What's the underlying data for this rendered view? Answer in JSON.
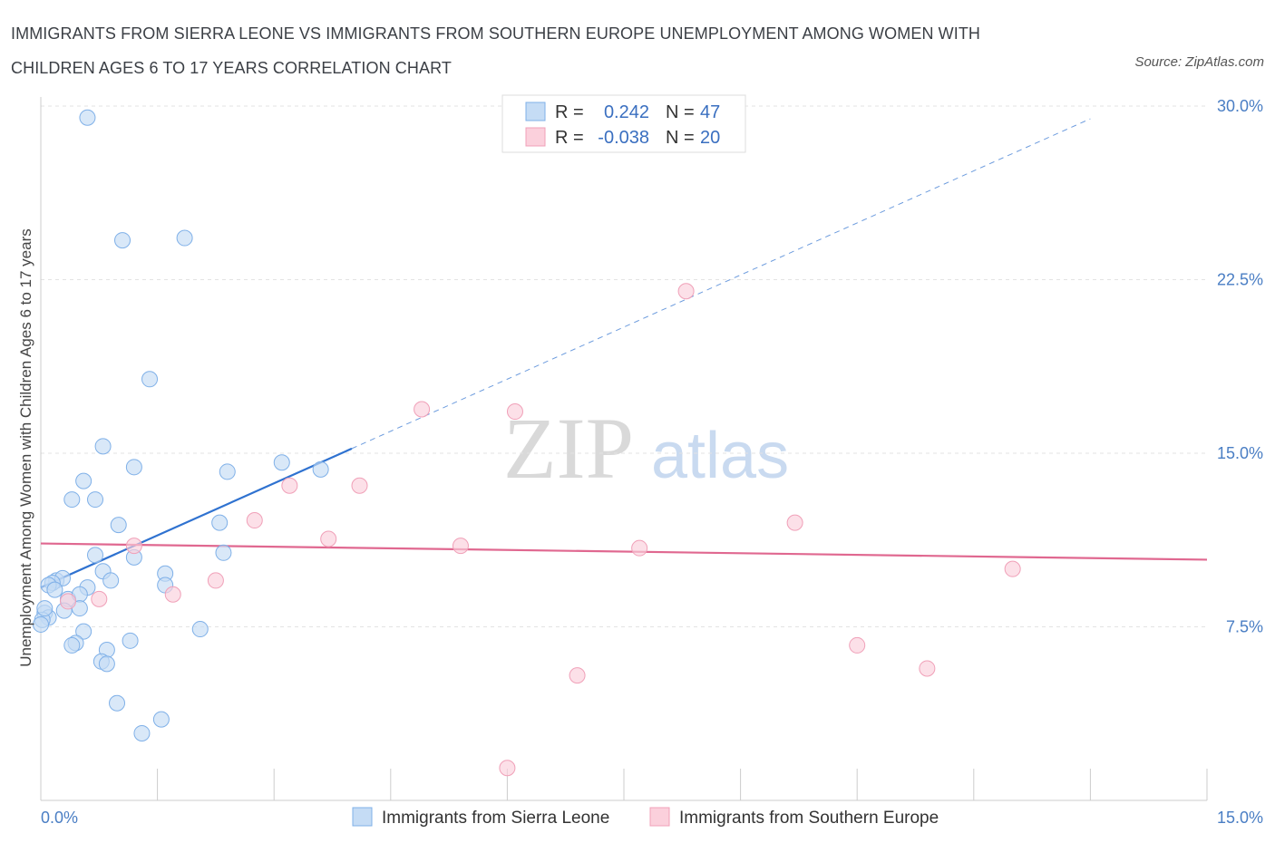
{
  "title": "IMMIGRANTS FROM SIERRA LEONE VS IMMIGRANTS FROM SOUTHERN EUROPE UNEMPLOYMENT AMONG WOMEN WITH CHILDREN AGES 6 TO 17 YEARS CORRELATION CHART",
  "source": "Source: ZipAtlas.com",
  "watermark": {
    "zip": "ZIP",
    "atlas": "atlas"
  },
  "chart_data": {
    "type": "scatter",
    "xlabel": "",
    "ylabel": "Unemployment Among Women with Children Ages 6 to 17 years",
    "xlim": [
      0,
      15
    ],
    "ylim": [
      0,
      30
    ],
    "x_tick_labels": [
      "0.0%",
      "15.0%"
    ],
    "y_ticks": [
      7.5,
      15.0,
      22.5,
      30.0
    ],
    "y_tick_labels": [
      "7.5%",
      "15.0%",
      "22.5%",
      "30.0%"
    ],
    "grid": true,
    "legend": {
      "r_label": "R =",
      "n_label": "N =",
      "entries": [
        {
          "name": "Immigrants from Sierra Leone",
          "r": "0.242",
          "n": "47"
        },
        {
          "name": "Immigrants from Southern Europe",
          "r": "-0.038",
          "n": "20"
        }
      ]
    },
    "series": [
      {
        "name": "Immigrants from Sierra Leone",
        "color": "#7fb0e8",
        "fill": "#c5dcf5",
        "line_color": "#2f72d0",
        "trend": {
          "x0": 0.0,
          "y0": 9.2,
          "x1": 4.0,
          "y1": 15.2,
          "dash_to_x": 13.5
        },
        "points": [
          [
            0.6,
            29.5
          ],
          [
            1.05,
            24.2
          ],
          [
            1.85,
            24.3
          ],
          [
            1.4,
            18.2
          ],
          [
            0.8,
            15.3
          ],
          [
            1.2,
            14.4
          ],
          [
            0.55,
            13.8
          ],
          [
            0.4,
            13.0
          ],
          [
            0.7,
            13.0
          ],
          [
            3.1,
            14.6
          ],
          [
            3.6,
            14.3
          ],
          [
            2.4,
            14.2
          ],
          [
            1.0,
            11.9
          ],
          [
            2.3,
            12.0
          ],
          [
            0.7,
            10.6
          ],
          [
            1.2,
            10.5
          ],
          [
            2.35,
            10.7
          ],
          [
            0.8,
            9.9
          ],
          [
            1.6,
            9.8
          ],
          [
            0.2,
            9.5
          ],
          [
            0.28,
            9.6
          ],
          [
            0.15,
            9.4
          ],
          [
            0.1,
            9.3
          ],
          [
            0.18,
            9.1
          ],
          [
            0.9,
            9.5
          ],
          [
            1.6,
            9.3
          ],
          [
            0.6,
            9.2
          ],
          [
            0.35,
            8.7
          ],
          [
            0.5,
            8.9
          ],
          [
            0.5,
            8.3
          ],
          [
            0.3,
            8.2
          ],
          [
            0.05,
            8.1
          ],
          [
            0.1,
            7.9
          ],
          [
            0.02,
            7.8
          ],
          [
            0.55,
            7.3
          ],
          [
            0.45,
            6.8
          ],
          [
            0.4,
            6.7
          ],
          [
            0.85,
            6.5
          ],
          [
            1.15,
            6.9
          ],
          [
            2.05,
            7.4
          ],
          [
            0.78,
            6.0
          ],
          [
            0.85,
            5.9
          ],
          [
            0.98,
            4.2
          ],
          [
            1.55,
            3.5
          ],
          [
            1.3,
            2.9
          ],
          [
            0.05,
            8.3
          ],
          [
            0.0,
            7.6
          ]
        ]
      },
      {
        "name": "Immigrants from Southern Europe",
        "color": "#f0a0b8",
        "fill": "#fbd0dc",
        "line_color": "#e06890",
        "trend": {
          "x0": 0.0,
          "y0": 11.1,
          "x1": 15.0,
          "y1": 10.4
        },
        "points": [
          [
            8.3,
            22.0
          ],
          [
            4.9,
            16.9
          ],
          [
            6.1,
            16.8
          ],
          [
            4.1,
            13.6
          ],
          [
            3.2,
            13.6
          ],
          [
            2.75,
            12.1
          ],
          [
            9.7,
            12.0
          ],
          [
            3.7,
            11.3
          ],
          [
            5.4,
            11.0
          ],
          [
            7.7,
            10.9
          ],
          [
            1.2,
            11.0
          ],
          [
            12.5,
            10.0
          ],
          [
            2.25,
            9.5
          ],
          [
            1.7,
            8.9
          ],
          [
            0.75,
            8.7
          ],
          [
            10.5,
            6.7
          ],
          [
            11.4,
            5.7
          ],
          [
            6.9,
            5.4
          ],
          [
            6.0,
            1.4
          ],
          [
            0.35,
            8.6
          ]
        ]
      }
    ]
  }
}
